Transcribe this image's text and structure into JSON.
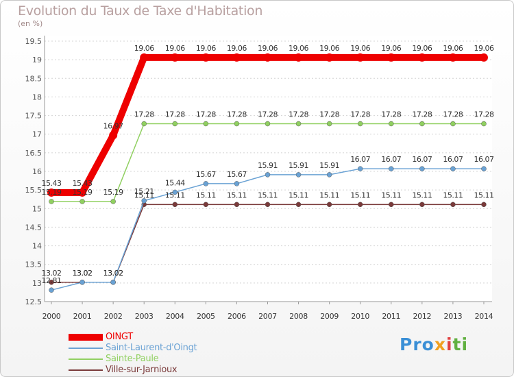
{
  "header": {
    "title": "Evolution du Taux de Taxe d'Habitation",
    "unit": "(en %)"
  },
  "chart_data": {
    "type": "line",
    "title": "Evolution du Taux de Taxe d'Habitation",
    "ylabel": "(en %)",
    "xlabel": "",
    "ylim": [
      12.5,
      19.5
    ],
    "yticks": [
      "12.5",
      "13",
      "13.5",
      "14",
      "14.5",
      "15",
      "15.5",
      "16",
      "16.5",
      "17",
      "17.5",
      "18",
      "18.5",
      "19",
      "19.5"
    ],
    "categories": [
      "2000",
      "2001",
      "2002",
      "2003",
      "2004",
      "2005",
      "2006",
      "2007",
      "2008",
      "2009",
      "2010",
      "2011",
      "2012",
      "2013",
      "2014"
    ],
    "series": [
      {
        "name": "OINGT",
        "color": "#ee0000",
        "values": [
          15.43,
          15.43,
          16.97,
          19.06,
          19.06,
          19.06,
          19.06,
          19.06,
          19.06,
          19.06,
          19.06,
          19.06,
          19.06,
          19.06,
          19.06
        ],
        "labels": [
          "15.43",
          "15.43",
          "16.97",
          "19.06",
          "19.06",
          "19.06",
          "19.06",
          "19.06",
          "19.06",
          "19.06",
          "19.06",
          "19.06",
          "19.06",
          "19.06",
          "19.06"
        ]
      },
      {
        "name": "Saint-Laurent-d'Oingt",
        "color": "#6aa2d4",
        "values": [
          12.81,
          13.02,
          13.02,
          15.21,
          15.44,
          15.67,
          15.67,
          15.91,
          15.91,
          15.91,
          16.07,
          16.07,
          16.07,
          16.07,
          16.07
        ],
        "labels": [
          "12.81",
          "13.02",
          "13.02",
          "15.21",
          "15.44",
          "15.67",
          "15.67",
          "15.91",
          "15.91",
          "15.91",
          "16.07",
          "16.07",
          "16.07",
          "16.07",
          "16.07"
        ]
      },
      {
        "name": "Sainte-Paule",
        "color": "#90d060",
        "values": [
          15.19,
          15.19,
          15.19,
          17.28,
          17.28,
          17.28,
          17.28,
          17.28,
          17.28,
          17.28,
          17.28,
          17.28,
          17.28,
          17.28,
          17.28
        ],
        "labels": [
          "15.19",
          "15.19",
          "15.19",
          "17.28",
          "17.28",
          "17.28",
          "17.28",
          "17.28",
          "17.28",
          "17.28",
          "17.28",
          "17.28",
          "17.28",
          "17.28",
          "17.28"
        ]
      },
      {
        "name": "Ville-sur-Jarnioux",
        "color": "#7a3a3a",
        "values": [
          13.02,
          13.02,
          13.02,
          15.11,
          15.11,
          15.11,
          15.11,
          15.11,
          15.11,
          15.11,
          15.11,
          15.11,
          15.11,
          15.11,
          15.11
        ],
        "labels": [
          "13.02",
          "13.02",
          "13.02",
          "15.11",
          "15.11",
          "15.11",
          "15.11",
          "15.11",
          "15.11",
          "15.11",
          "15.11",
          "15.11",
          "15.11",
          "15.11",
          "15.11"
        ]
      }
    ],
    "legend": "bottom-left"
  },
  "logo": {
    "part1": "Pro",
    "part2": "x",
    "part3": "i",
    "part4": "ti"
  }
}
